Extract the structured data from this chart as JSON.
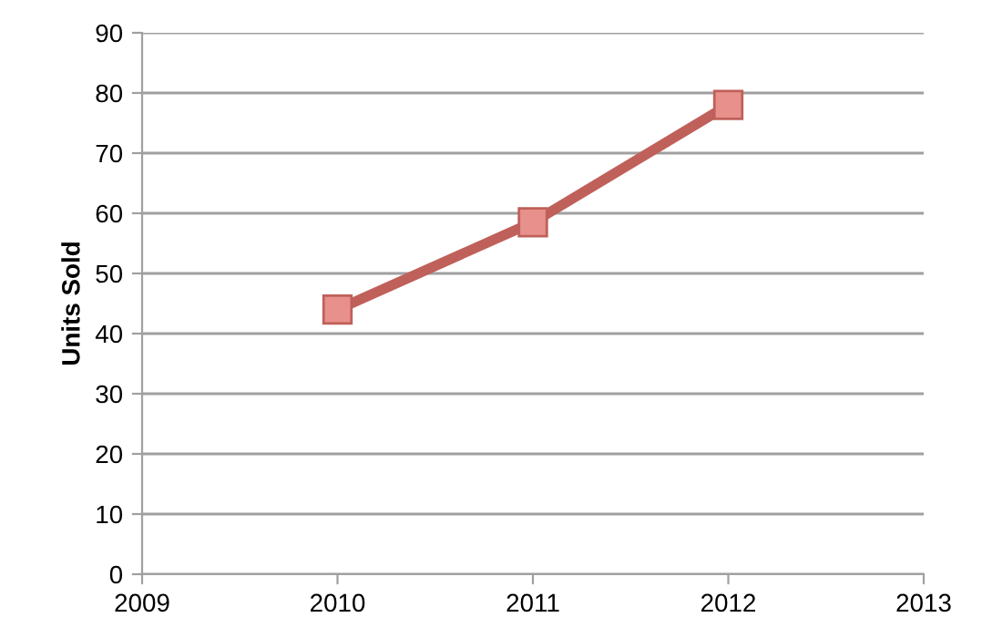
{
  "chart_data": {
    "type": "line",
    "ylabel": "Units Sold",
    "x": [
      2010,
      2011,
      2012
    ],
    "series": [
      {
        "color": "#c0605a",
        "values": [
          44,
          58.5,
          78
        ]
      }
    ],
    "xlim": [
      2009,
      2013
    ],
    "xticks": [
      2009,
      2010,
      2011,
      2012,
      2013
    ],
    "ylim": [
      0,
      90
    ],
    "yticks": [
      0,
      10,
      20,
      30,
      40,
      50,
      60,
      70,
      80,
      90
    ],
    "grid": "y",
    "marker": "square",
    "line_style": "solid",
    "legend": false
  }
}
